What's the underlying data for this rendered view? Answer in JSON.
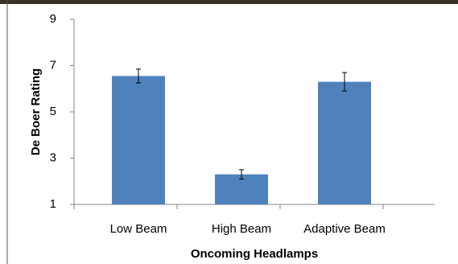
{
  "chart_data": {
    "type": "bar",
    "x_label": "Oncoming Headlamps",
    "y_label": "De Boer Rating",
    "categories": [
      "Low Beam",
      "High Beam",
      "Adaptive Beam"
    ],
    "values": [
      6.55,
      2.3,
      6.3
    ],
    "errors": [
      0.3,
      0.2,
      0.4
    ],
    "color": "#4f81bd",
    "ylim": [
      1,
      9
    ],
    "yticks": [
      1,
      3,
      5,
      7,
      9
    ],
    "grid": false
  }
}
